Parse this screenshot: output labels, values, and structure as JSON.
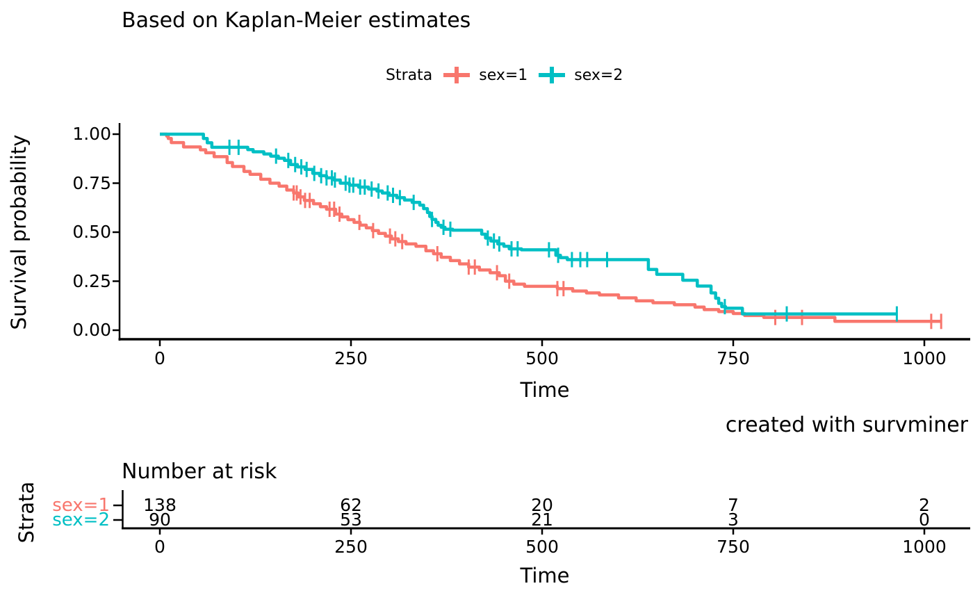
{
  "title": "Based on Kaplan-Meier estimates",
  "legend": {
    "title": "Strata",
    "entries": [
      {
        "label": "sex=1",
        "color": "#F8766D"
      },
      {
        "label": "sex=2",
        "color": "#00BFC4"
      }
    ]
  },
  "main_plot": {
    "y_axis_title": "Survival probability",
    "x_axis_title": "Time",
    "y_tick_labels": [
      "1.00",
      "0.75",
      "0.50",
      "0.25",
      "0.00"
    ],
    "y_tick_values": [
      1.0,
      0.75,
      0.5,
      0.25,
      0.0
    ],
    "x_tick_labels": [
      "0",
      "250",
      "500",
      "750",
      "1000"
    ],
    "x_tick_values": [
      0,
      250,
      500,
      750,
      1000
    ]
  },
  "caption": "created with survminer",
  "risk_table": {
    "title": "Number at risk",
    "y_axis_title": "Strata",
    "x_axis_title": "Time",
    "x_tick_labels": [
      "0",
      "250",
      "500",
      "750",
      "1000"
    ],
    "x_tick_values": [
      0,
      250,
      500,
      750,
      1000
    ],
    "rows": [
      {
        "label": "sex=1",
        "color": "#F8766D",
        "counts": [
          138,
          62,
          20,
          7,
          2
        ]
      },
      {
        "label": "sex=2",
        "color": "#00BFC4",
        "counts": [
          90,
          53,
          21,
          3,
          0
        ]
      }
    ]
  },
  "chart_data": {
    "type": "line",
    "subtype": "kaplan-meier-step",
    "title": "Based on Kaplan-Meier estimates",
    "xlabel": "Time",
    "ylabel": "Survival probability",
    "xlim": [
      0,
      1022
    ],
    "ylim": [
      0,
      1
    ],
    "x_ticks": [
      0,
      250,
      500,
      750,
      1000
    ],
    "y_ticks": [
      0.0,
      0.25,
      0.5,
      0.75,
      1.0
    ],
    "grid": false,
    "legend_position": "top",
    "series": [
      {
        "name": "sex=1",
        "color": "#F8766D",
        "steps": [
          [
            0,
            1.0
          ],
          [
            9,
            0.99
          ],
          [
            11,
            0.978
          ],
          [
            15,
            0.957
          ],
          [
            31,
            0.935
          ],
          [
            53,
            0.92
          ],
          [
            60,
            0.905
          ],
          [
            71,
            0.885
          ],
          [
            88,
            0.855
          ],
          [
            95,
            0.835
          ],
          [
            110,
            0.81
          ],
          [
            118,
            0.795
          ],
          [
            132,
            0.77
          ],
          [
            144,
            0.75
          ],
          [
            156,
            0.735
          ],
          [
            166,
            0.715
          ],
          [
            175,
            0.7
          ],
          [
            181,
            0.68
          ],
          [
            189,
            0.662
          ],
          [
            201,
            0.645
          ],
          [
            210,
            0.63
          ],
          [
            218,
            0.617
          ],
          [
            230,
            0.592
          ],
          [
            238,
            0.578
          ],
          [
            246,
            0.564
          ],
          [
            254,
            0.55
          ],
          [
            262,
            0.536
          ],
          [
            270,
            0.522
          ],
          [
            278,
            0.508
          ],
          [
            286,
            0.494
          ],
          [
            295,
            0.48
          ],
          [
            303,
            0.466
          ],
          [
            312,
            0.452
          ],
          [
            322,
            0.44
          ],
          [
            335,
            0.428
          ],
          [
            348,
            0.405
          ],
          [
            358,
            0.39
          ],
          [
            368,
            0.372
          ],
          [
            380,
            0.355
          ],
          [
            392,
            0.338
          ],
          [
            404,
            0.322
          ],
          [
            418,
            0.307
          ],
          [
            432,
            0.293
          ],
          [
            444,
            0.278
          ],
          [
            452,
            0.25
          ],
          [
            463,
            0.235
          ],
          [
            477,
            0.224
          ],
          [
            520,
            0.212
          ],
          [
            540,
            0.2
          ],
          [
            558,
            0.19
          ],
          [
            575,
            0.18
          ],
          [
            600,
            0.165
          ],
          [
            623,
            0.15
          ],
          [
            645,
            0.14
          ],
          [
            673,
            0.13
          ],
          [
            700,
            0.118
          ],
          [
            712,
            0.105
          ],
          [
            731,
            0.095
          ],
          [
            750,
            0.085
          ],
          [
            765,
            0.075
          ],
          [
            790,
            0.065
          ],
          [
            883,
            0.045
          ],
          [
            1022,
            0.045
          ]
        ],
        "censor_times": [
          175,
          179,
          184,
          190,
          196,
          222,
          228,
          235,
          261,
          279,
          301,
          308,
          317,
          363,
          404,
          412,
          441,
          457,
          520,
          528,
          805,
          840,
          1009,
          1022
        ]
      },
      {
        "name": "sex=2",
        "color": "#00BFC4",
        "steps": [
          [
            0,
            1.0
          ],
          [
            57,
            0.978
          ],
          [
            62,
            0.956
          ],
          [
            68,
            0.933
          ],
          [
            115,
            0.921
          ],
          [
            122,
            0.91
          ],
          [
            136,
            0.899
          ],
          [
            145,
            0.888
          ],
          [
            155,
            0.877
          ],
          [
            163,
            0.866
          ],
          [
            171,
            0.845
          ],
          [
            180,
            0.833
          ],
          [
            190,
            0.82
          ],
          [
            200,
            0.8
          ],
          [
            209,
            0.788
          ],
          [
            218,
            0.777
          ],
          [
            228,
            0.766
          ],
          [
            236,
            0.75
          ],
          [
            248,
            0.74
          ],
          [
            260,
            0.73
          ],
          [
            273,
            0.72
          ],
          [
            284,
            0.71
          ],
          [
            291,
            0.7
          ],
          [
            300,
            0.688
          ],
          [
            310,
            0.676
          ],
          [
            320,
            0.664
          ],
          [
            330,
            0.652
          ],
          [
            340,
            0.638
          ],
          [
            345,
            0.62
          ],
          [
            350,
            0.6
          ],
          [
            353,
            0.58
          ],
          [
            356,
            0.565
          ],
          [
            361,
            0.55
          ],
          [
            364,
            0.535
          ],
          [
            368,
            0.525
          ],
          [
            373,
            0.515
          ],
          [
            383,
            0.51
          ],
          [
            421,
            0.49
          ],
          [
            426,
            0.47
          ],
          [
            433,
            0.455
          ],
          [
            442,
            0.44
          ],
          [
            450,
            0.428
          ],
          [
            457,
            0.415
          ],
          [
            473,
            0.41
          ],
          [
            518,
            0.382
          ],
          [
            524,
            0.37
          ],
          [
            533,
            0.36
          ],
          [
            639,
            0.31
          ],
          [
            650,
            0.285
          ],
          [
            684,
            0.255
          ],
          [
            703,
            0.225
          ],
          [
            721,
            0.19
          ],
          [
            727,
            0.163
          ],
          [
            731,
            0.137
          ],
          [
            735,
            0.12
          ],
          [
            740,
            0.112
          ],
          [
            762,
            0.083
          ],
          [
            965,
            0.083
          ]
        ],
        "censor_times": [
          91,
          103,
          152,
          168,
          177,
          185,
          192,
          202,
          211,
          218,
          225,
          229,
          243,
          248,
          253,
          262,
          268,
          277,
          286,
          298,
          305,
          314,
          332,
          356,
          371,
          380,
          429,
          437,
          444,
          460,
          468,
          509,
          521,
          539,
          550,
          559,
          585,
          739,
          820,
          964
        ]
      }
    ],
    "risk_table": {
      "title": "Number at risk",
      "times": [
        0,
        250,
        500,
        750,
        1000
      ],
      "rows": [
        {
          "name": "sex=1",
          "counts": [
            138,
            62,
            20,
            7,
            2
          ]
        },
        {
          "name": "sex=2",
          "counts": [
            90,
            53,
            21,
            3,
            0
          ]
        }
      ]
    }
  }
}
